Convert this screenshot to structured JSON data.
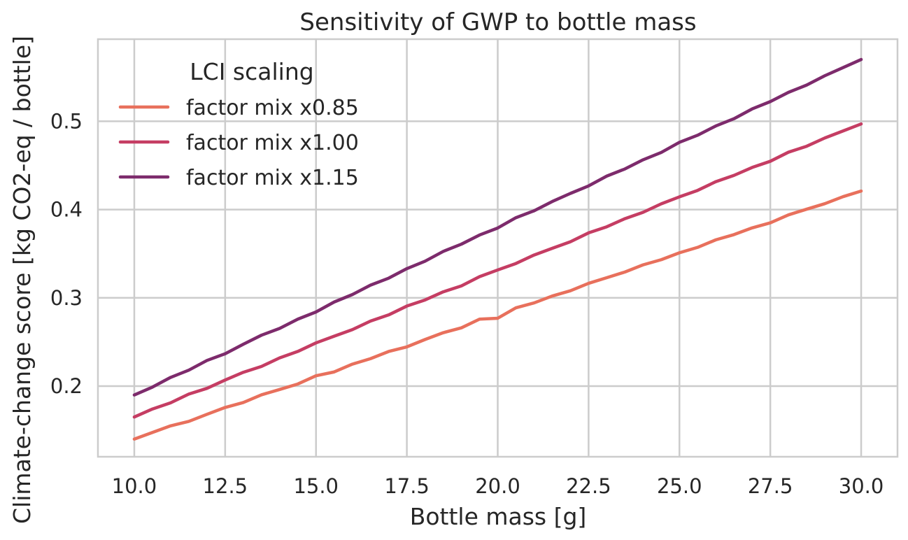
{
  "chart_data": {
    "type": "line",
    "title": "Sensitivity of GWP to bottle mass",
    "xlabel": "Bottle mass [g]",
    "ylabel": "Climate-change score [kg CO2-eq / bottle]",
    "xlim": [
      9.0,
      31.0
    ],
    "ylim": [
      0.12,
      0.593
    ],
    "xticks": [
      "10.0",
      "12.5",
      "15.0",
      "17.5",
      "20.0",
      "22.5",
      "25.0",
      "27.5",
      "30.0"
    ],
    "yticks": [
      "0.2",
      "0.3",
      "0.4",
      "0.5"
    ],
    "grid": true,
    "legend": {
      "title": "LCI scaling",
      "placement": "upper-left"
    },
    "x_range": {
      "start": 10.0,
      "end": 30.0,
      "points": 41
    },
    "series": [
      {
        "name": "factor mix x0.85",
        "color": "#e8705c",
        "start": 0.14,
        "end": 0.421,
        "jitter": [
          0,
          0.0005,
          0.001,
          -0.001,
          0,
          0.0007,
          -0.0007,
          0.001,
          0,
          -0.0008,
          0.0015,
          -0.0012,
          0.0006,
          -0.0002,
          0.0009,
          -0.0009,
          0.0004,
          0.0011,
          -0.0004,
          0.0024,
          -0.0036,
          0.0012,
          -0.0003,
          0.0005,
          -0.0006,
          0.0008,
          0.0002,
          -0.0004,
          0.0007,
          -0.0005,
          0.0003,
          -0.0006,
          0.0009,
          -0.0002,
          0.0004,
          -0.0009,
          0.0011,
          0.0005,
          -0.0003,
          0.0006,
          0
        ]
      },
      {
        "name": "factor mix x1.00",
        "color": "#c53d63",
        "start": 0.165,
        "end": 0.497,
        "jitter": [
          0,
          0.0008,
          -0.0005,
          0.0011,
          -0.0007,
          0.0004,
          0.0009,
          -0.0008,
          0.0006,
          -0.0004,
          0.001,
          0.0003,
          -0.0006,
          0.0008,
          -0.0005,
          0.0012,
          -0.0002,
          0.0007,
          -0.0009,
          0.0013,
          0.0006,
          -0.0004,
          0.0009,
          0.0002,
          -0.0007,
          0.0011,
          -0.0003,
          0.0006,
          -0.0005,
          0.0008,
          0.0004,
          -0.0006,
          0.001,
          -0.0002,
          0.0005,
          -0.0008,
          0.0012,
          -0.0004,
          0.0007,
          0.0003,
          0
        ]
      },
      {
        "name": "factor mix x1.15",
        "color": "#7d2b6c",
        "start": 0.19,
        "end": 0.57,
        "jitter": [
          0,
          -0.0006,
          0.0009,
          -0.0004,
          0.0011,
          -0.0008,
          0.0005,
          0.0012,
          -0.0006,
          0.0004,
          -0.001,
          0.0008,
          -0.0003,
          0.0009,
          -0.0007,
          0.0006,
          -0.0005,
          0.0011,
          -0.0002,
          0.0007,
          -0.0009,
          0.0013,
          -0.0004,
          0.0006,
          0.0003,
          -0.0007,
          0.0009,
          -0.0005,
          0.0004,
          -0.0008,
          0.0012,
          -0.0003,
          0.0007,
          -0.0006,
          0.001,
          -0.0002,
          0.0008,
          -0.0005,
          0.0006,
          0.0003,
          0
        ]
      }
    ]
  }
}
